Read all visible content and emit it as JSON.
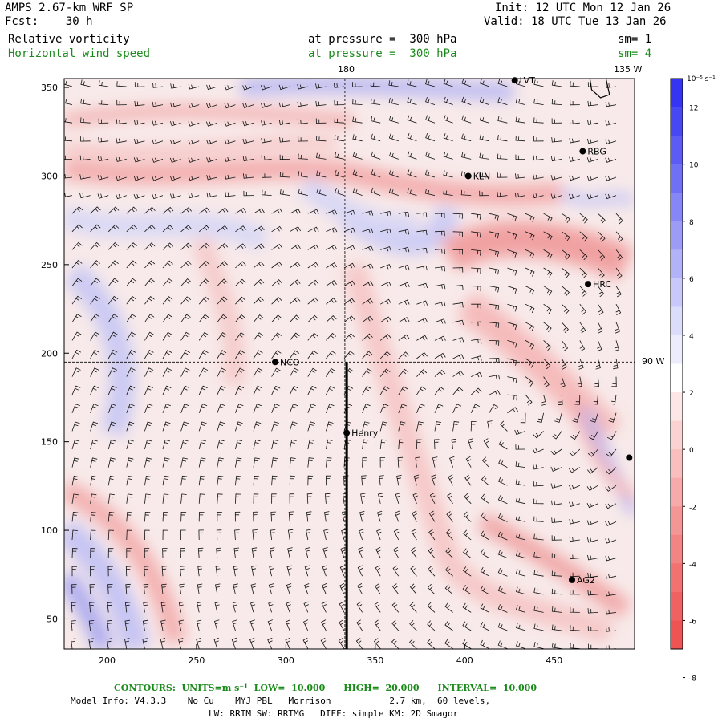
{
  "header": {
    "model_title": "AMPS 2.67-km WRF SP",
    "forecast": "Fcst:    30 h",
    "init": "Init: 12 UTC Mon 12 Jan 26",
    "valid": "Valid: 18 UTC Tue 13 Jan 26",
    "field1_name": "Relative vorticity",
    "field1_level": "at pressure =  300 hPa",
    "field1_sm": "sm= 1",
    "field2_name": "Horizontal wind speed",
    "field2_level": "at pressure =  300 hPa",
    "field2_sm": "sm= 4"
  },
  "map": {
    "x_axis_ticks": [
      "200",
      "250",
      "300",
      "350",
      "400",
      "450"
    ],
    "y_axis_ticks": [
      "50",
      "100",
      "150",
      "200",
      "250",
      "300",
      "350"
    ],
    "x_range": [
      176,
      495
    ],
    "y_range": [
      33,
      355
    ],
    "meridian_180_label": "180",
    "meridian_135w_label": "135 W",
    "meridian_90w_label": "90 W",
    "meridian_180_x": 333,
    "equator_line_y": 195,
    "cross_section_x": 334,
    "cross_section_y_range": [
      33,
      195
    ],
    "stations": [
      {
        "name": "LVT",
        "x": 428,
        "y": 354
      },
      {
        "name": "RBG",
        "x": 466,
        "y": 314
      },
      {
        "name": "KLN",
        "x": 402,
        "y": 300
      },
      {
        "name": "HRC",
        "x": 469,
        "y": 239
      },
      {
        "name": "NCO",
        "x": 294,
        "y": 195
      },
      {
        "name": "Henry",
        "x": 334,
        "y": 155
      },
      {
        "name": "",
        "x": 492,
        "y": 141
      },
      {
        "name": "AG2",
        "x": 460,
        "y": 72
      }
    ],
    "positive_color": "#3a3aee",
    "negative_color": "#ee4a4a"
  },
  "colorbar": {
    "unit_label": "10⁻⁵ s⁻¹",
    "tick_labels": [
      "12",
      "10",
      "8",
      "6",
      "4",
      "2",
      "0",
      "-2",
      "-4",
      "-6",
      "-8"
    ],
    "colors": [
      "#3434f2",
      "#4848f3",
      "#5c5cf4",
      "#7070f5",
      "#8686f6",
      "#9c9cf7",
      "#b2b2f8",
      "#c8c8fa",
      "#dcdcfb",
      "#ececfd",
      "#ffffff",
      "#fde6e6",
      "#fbd2d2",
      "#f9bebe",
      "#f7aaaa",
      "#f59696",
      "#f38484",
      "#f27272",
      "#f06262",
      "#ef5454"
    ]
  },
  "footer": {
    "contours": "CONTOURS:  UNITS=m s⁻¹  LOW=  10.000      HIGH=  20.000      INTERVAL=  10.000",
    "model_info": "Model Info: V4.3.3    No Cu    MYJ PBL   Morrison           2.7 km,  60 levels,",
    "model_info2": "LW: RRTM SW: RRTMG   DIFF: simple KM: 2D Smagor"
  }
}
